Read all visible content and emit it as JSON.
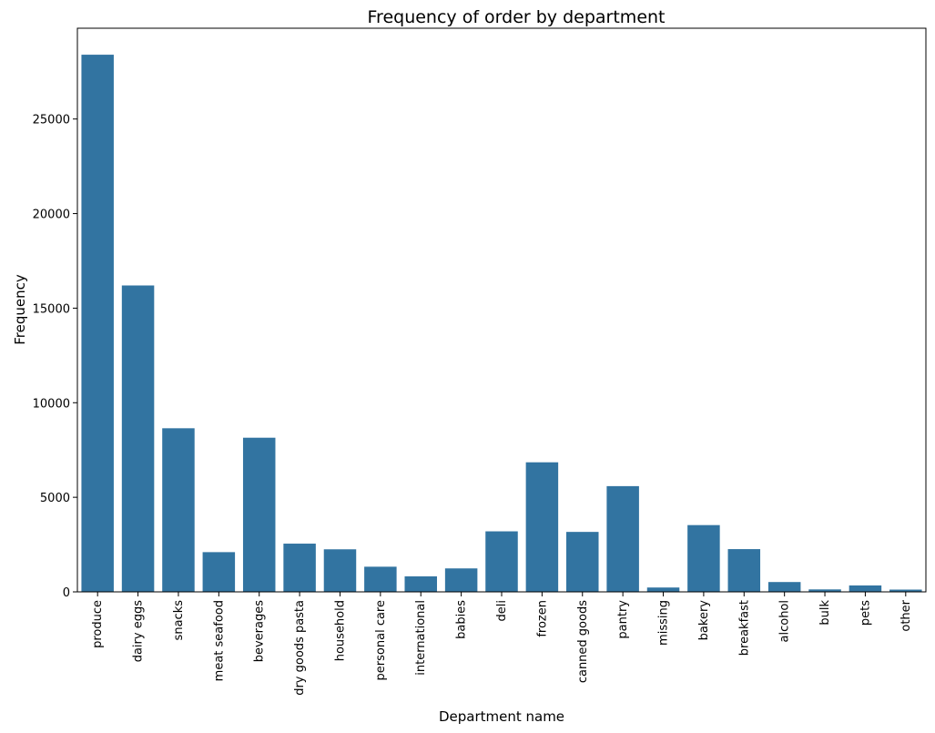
{
  "chart_data": {
    "type": "bar",
    "title": "Frequency of order by department",
    "xlabel": "Department name",
    "ylabel": "Frequency",
    "categories": [
      "produce",
      "dairy eggs",
      "snacks",
      "meat seafood",
      "beverages",
      "dry goods pasta",
      "household",
      "personal care",
      "international",
      "babies",
      "deli",
      "frozen",
      "canned goods",
      "pantry",
      "missing",
      "bakery",
      "breakfast",
      "alcohol",
      "bulk",
      "pets",
      "other"
    ],
    "values": [
      28400,
      16200,
      8650,
      2100,
      8150,
      2550,
      2250,
      1330,
      820,
      1240,
      3200,
      6850,
      3170,
      5590,
      230,
      3530,
      2260,
      520,
      130,
      340,
      120
    ],
    "yticks": [
      0,
      5000,
      10000,
      15000,
      20000,
      25000
    ],
    "ylim": [
      0,
      29800
    ],
    "grid": false,
    "bar_color": "#3274a1"
  }
}
